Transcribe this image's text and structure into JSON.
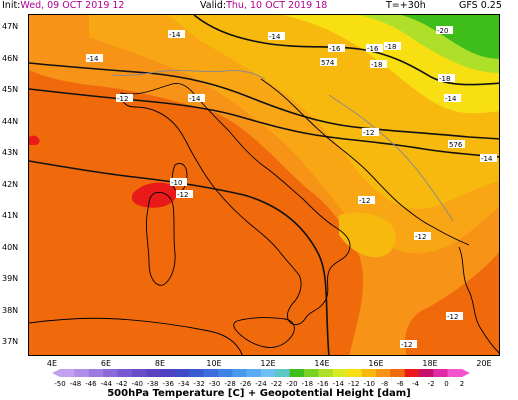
{
  "header": {
    "init_label": "Init:",
    "init_value": "Wed, 09 OCT 2019  12",
    "valid_label": "Valid:",
    "valid_value": "Thu, 10 OCT 2019  18",
    "step": "T=+30h",
    "model": "GFS 0.25"
  },
  "map": {
    "lat_ticks": [
      "47N",
      "46N",
      "45N",
      "44N",
      "43N",
      "42N",
      "41N",
      "40N",
      "39N",
      "38N",
      "37N"
    ],
    "lon_ticks": [
      "4E",
      "6E",
      "8E",
      "10E",
      "12E",
      "14E",
      "16E",
      "18E",
      "20E"
    ],
    "contour_labels": [
      "-14",
      "-14",
      "-16",
      "-16",
      "-18",
      "-20",
      "-18",
      "-18",
      "-14",
      "-12",
      "574",
      "-14",
      "-14",
      "-10",
      "-12",
      "-12",
      "-12",
      "576",
      "-14",
      "-12",
      "-12",
      "-12"
    ],
    "colors": {
      "orange_deep": "#f06a0c",
      "orange": "#f79418",
      "amber": "#f8b90e",
      "yellow": "#f7df12",
      "lime": "#aee02a",
      "green": "#3fbd1a",
      "warm_red": "#ea1a1a",
      "coast": "#000000",
      "border": "#8a8a8a",
      "height_line": "#111111"
    }
  },
  "colorbar": {
    "ticks": [
      "-50",
      "-48",
      "-46",
      "-44",
      "-42",
      "-40",
      "-38",
      "-36",
      "-34",
      "-32",
      "-30",
      "-28",
      "-26",
      "-24",
      "-22",
      "-20",
      "-18",
      "-16",
      "-14",
      "-12",
      "-10",
      "-8",
      "-6",
      "-4",
      "-2",
      "0",
      "2"
    ]
  },
  "footer": {
    "caption": "500hPa Temperature [C] + Geopotential Height [dam]"
  }
}
